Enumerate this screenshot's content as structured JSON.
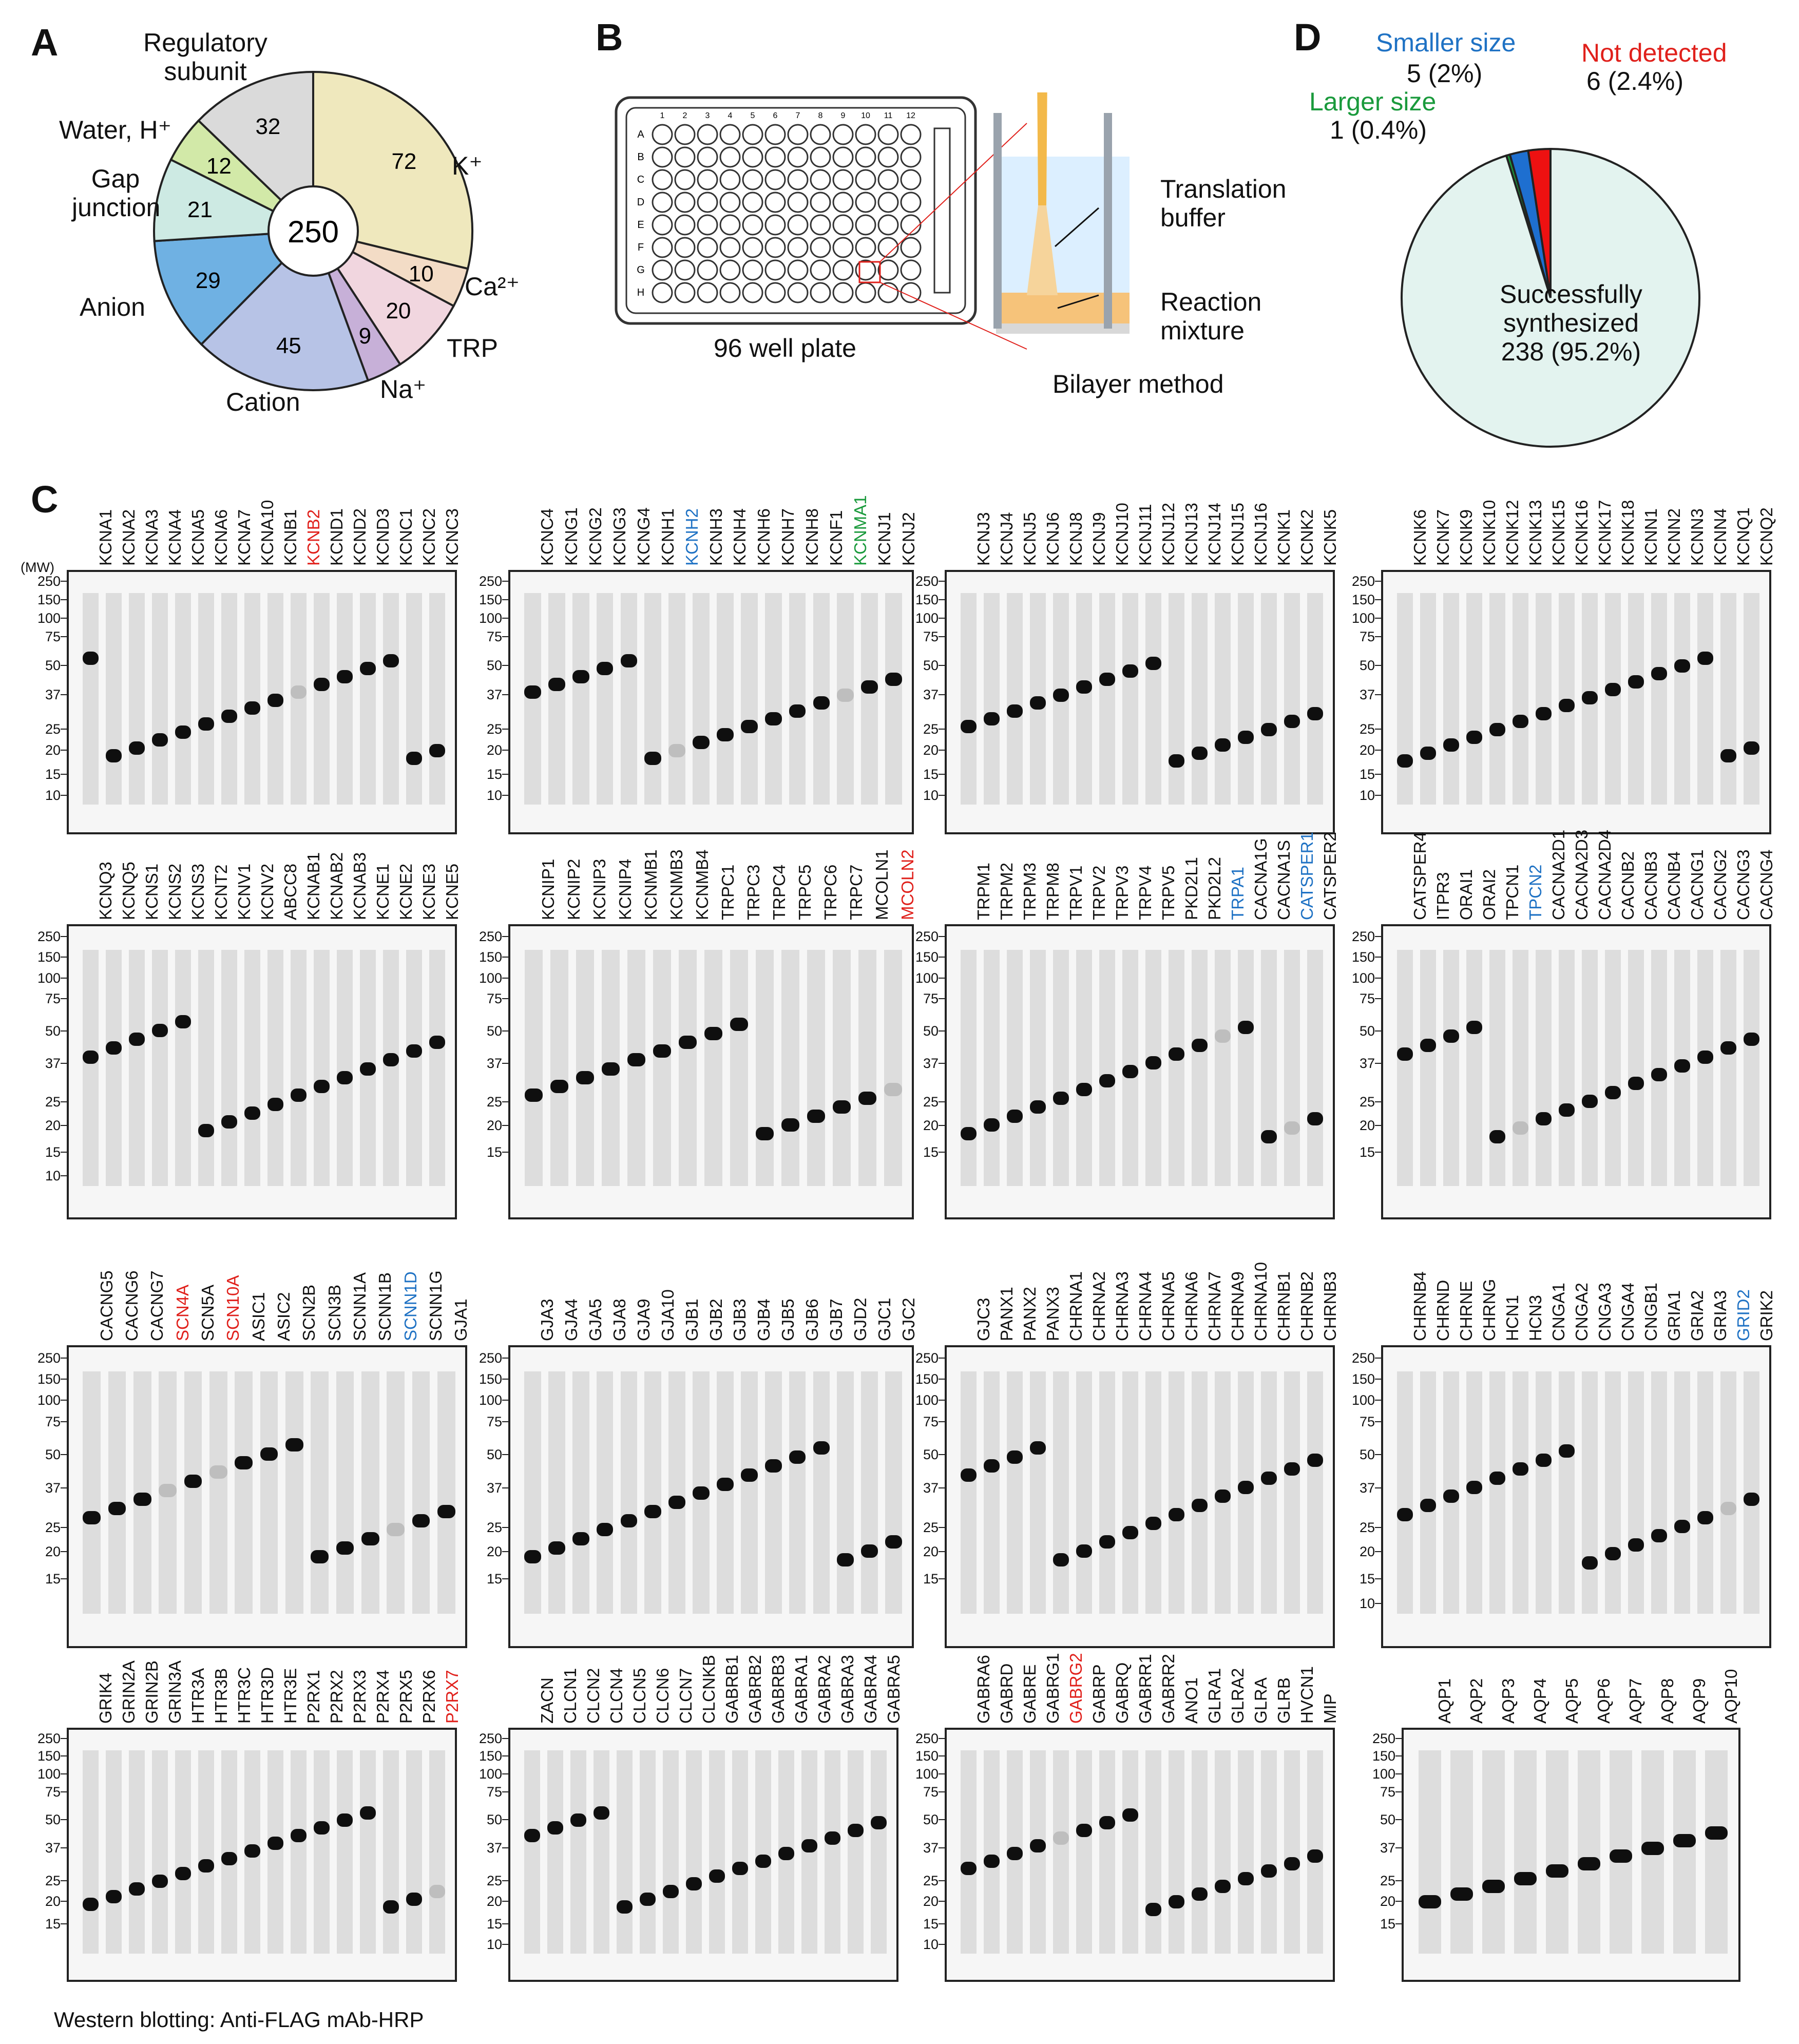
{
  "panels": {
    "A": {
      "label": "A",
      "center_value": "250",
      "slices": [
        {
          "name": "K⁺",
          "value": 72,
          "color": "#efe8bd"
        },
        {
          "name": "Ca²⁺",
          "value": 10,
          "color": "#f3dcc6"
        },
        {
          "name": "TRP",
          "value": 20,
          "color": "#f1d6df"
        },
        {
          "name": "Na⁺",
          "value": 9,
          "color": "#c7b0d8"
        },
        {
          "name": "Cation",
          "value": 45,
          "color": "#b7c3e6"
        },
        {
          "name": "Anion",
          "value": 29,
          "color": "#6fb1e3"
        },
        {
          "name": "Gap junction",
          "value": 21,
          "color": "#cdeae3"
        },
        {
          "name": "Water, H⁺",
          "value": 12,
          "color": "#d2e9a8"
        },
        {
          "name": "Regulatory subunit",
          "value": 32,
          "color": "#dadada"
        }
      ],
      "labels": {
        "regulatory": [
          "Regulatory",
          "subunit"
        ],
        "k": "K⁺",
        "water": "Water, H⁺",
        "gap": [
          "Gap",
          "junction"
        ],
        "ca": "Ca²⁺",
        "anion": "Anion",
        "trp": "TRP",
        "cation": "Cation",
        "na": "Na⁺"
      }
    },
    "B": {
      "label": "B",
      "plate_rows": [
        "A",
        "B",
        "C",
        "D",
        "E",
        "F",
        "G",
        "H"
      ],
      "plate_cols": [
        "1",
        "2",
        "3",
        "4",
        "5",
        "6",
        "7",
        "8",
        "9",
        "10",
        "11",
        "12"
      ],
      "plate_caption": "96 well plate",
      "translation_buffer": [
        "Translation",
        "buffer"
      ],
      "reaction_mixture": [
        "Reaction",
        "mixture"
      ],
      "method_caption": "Bilayer method"
    },
    "D": {
      "label": "D",
      "slices": [
        {
          "name": "Successfully synthesized",
          "count": 238,
          "percent": "95.2%",
          "color": "#e3f3ef"
        },
        {
          "name": "Larger size",
          "count": 1,
          "percent": "0.4%",
          "color": "#1a9a3c"
        },
        {
          "name": "Smaller size",
          "count": 5,
          "percent": "2%",
          "color": "#1e6fd0"
        },
        {
          "name": "Not detected",
          "count": 6,
          "percent": "2.4%",
          "color": "#ee1111"
        }
      ],
      "labels": {
        "smaller": "Smaller size",
        "smaller_val": "5 (2%)",
        "not_detected": "Not detected",
        "not_detected_val": "6 (2.4%)",
        "larger": "Larger size",
        "larger_val": "1 (0.4%)",
        "success": [
          "Successfully",
          "synthesized",
          "238 (95.2%)"
        ]
      }
    },
    "C": {
      "label": "C",
      "mw_header": "(MW)",
      "footer": "Western blotting:  Anti-FLAG mAb-HRP",
      "blots": [
        {
          "lanes": [
            "KCNA1",
            "KCNA2",
            "KCNA3",
            "KCNA4",
            "KCNA5",
            "KCNA6",
            "KCNA7",
            "KCNA10",
            "KCNB1",
            "KCNB2",
            "KCND1",
            "KCND2",
            "KCND3",
            "KCNC1",
            "KCNC2",
            "KCNC3"
          ],
          "colored": {
            "KCNB2": "#e0201b"
          },
          "mw": [
            "250",
            "150",
            "100",
            "75",
            "50",
            "37",
            "25",
            "20",
            "15",
            "10"
          ]
        },
        {
          "lanes": [
            "KCNC4",
            "KCNG1",
            "KCNG2",
            "KCNG3",
            "KCNG4",
            "KCNH1",
            "KCNH2",
            "KCNH3",
            "KCNH4",
            "KCNH6",
            "KCNH7",
            "KCNH8",
            "KCNF1",
            "KCNMA1",
            "KCNJ1",
            "KCNJ2"
          ],
          "colored": {
            "KCNH2": "#1f72c4",
            "KCNMA1": "#1a9a3c"
          },
          "mw": [
            "250",
            "150",
            "100",
            "75",
            "50",
            "37",
            "25",
            "20",
            "15",
            "10"
          ]
        },
        {
          "lanes": [
            "KCNJ3",
            "KCNJ4",
            "KCNJ5",
            "KCNJ6",
            "KCNJ8",
            "KCNJ9",
            "KCNJ10",
            "KCNJ11",
            "KCNJ12",
            "KCNJ13",
            "KCNJ14",
            "KCNJ15",
            "KCNJ16",
            "KCNK1",
            "KCNK2",
            "KCNK5"
          ],
          "colored": {},
          "mw": [
            "250",
            "150",
            "100",
            "75",
            "50",
            "37",
            "25",
            "20",
            "15",
            "10"
          ]
        },
        {
          "lanes": [
            "KCNK6",
            "KCNK7",
            "KCNK9",
            "KCNK10",
            "KCNK12",
            "KCNK13",
            "KCNK15",
            "KCNK16",
            "KCNK17",
            "KCNK18",
            "KCNN1",
            "KCNN2",
            "KCNN3",
            "KCNN4",
            "KCNQ1",
            "KCNQ2"
          ],
          "colored": {},
          "mw": [
            "250",
            "150",
            "100",
            "75",
            "50",
            "37",
            "25",
            "20",
            "15",
            "10"
          ]
        },
        {
          "lanes": [
            "KCNQ3",
            "KCNQ5",
            "KCNS1",
            "KCNS2",
            "KCNS3",
            "KCNT2",
            "KCNV1",
            "KCNV2",
            "ABCC8",
            "KCNAB1",
            "KCNAB2",
            "KCNAB3",
            "KCNE1",
            "KCNE2",
            "KCNE3",
            "KCNE5"
          ],
          "colored": {},
          "mw": [
            "250",
            "150",
            "100",
            "75",
            "50",
            "37",
            "25",
            "20",
            "15",
            "10"
          ]
        },
        {
          "lanes": [
            "KCNIP1",
            "KCNIP2",
            "KCNIP3",
            "KCNIP4",
            "KCNMB1",
            "KCNMB3",
            "KCNMB4",
            "TRPC1",
            "TRPC3",
            "TRPC4",
            "TRPC5",
            "TRPC6",
            "TRPC7",
            "MCOLN1",
            "MCOLN2"
          ],
          "colored": {
            "MCOLN2": "#e0201b"
          },
          "mw": [
            "250",
            "150",
            "100",
            "75",
            "50",
            "37",
            "25",
            "20",
            "15"
          ]
        },
        {
          "lanes": [
            "TRPM1",
            "TRPM2",
            "TRPM3",
            "TRPM8",
            "TRPV1",
            "TRPV2",
            "TRPV3",
            "TRPV4",
            "TRPV5",
            "PKD2L1",
            "PKD2L2",
            "TRPA1",
            "CACNA1G",
            "CACNA1S",
            "CATSPER1",
            "CATSPER2"
          ],
          "colored": {
            "TRPA1": "#1f72c4",
            "CATSPER1": "#1f72c4"
          },
          "mw": [
            "250",
            "150",
            "100",
            "75",
            "50",
            "37",
            "25",
            "20",
            "15"
          ]
        },
        {
          "lanes": [
            "CATSPER4",
            "ITPR3",
            "ORAI1",
            "ORAI2",
            "TPCN1",
            "TPCN2",
            "CACNA2D1",
            "CACNA2D3",
            "CACNA2D4",
            "CACNB2",
            "CACNB3",
            "CACNB4",
            "CACNG1",
            "CACNG2",
            "CACNG3",
            "CACNG4"
          ],
          "colored": {
            "TPCN2": "#1f72c4"
          },
          "mw": [
            "250",
            "150",
            "100",
            "75",
            "50",
            "37",
            "25",
            "20",
            "15"
          ]
        },
        {
          "lanes": [
            "CACNG5",
            "CACNG6",
            "CACNG7",
            "SCN4A",
            "SCN5A",
            "SCN10A",
            "ASIC1",
            "ASIC2",
            "SCN2B",
            "SCN3B",
            "SCNN1A",
            "SCNN1B",
            "SCNN1D",
            "SCNN1G",
            "GJA1"
          ],
          "colored": {
            "SCN4A": "#e0201b",
            "SCN10A": "#e0201b",
            "SCNN1D": "#1f72c4"
          },
          "mw": [
            "250",
            "150",
            "100",
            "75",
            "50",
            "37",
            "25",
            "20",
            "15"
          ]
        },
        {
          "lanes": [
            "GJA3",
            "GJA4",
            "GJA5",
            "GJA8",
            "GJA9",
            "GJA10",
            "GJB1",
            "GJB2",
            "GJB3",
            "GJB4",
            "GJB5",
            "GJB6",
            "GJB7",
            "GJD2",
            "GJC1",
            "GJC2"
          ],
          "colored": {},
          "mw": [
            "250",
            "150",
            "100",
            "75",
            "50",
            "37",
            "25",
            "20",
            "15"
          ]
        },
        {
          "lanes": [
            "GJC3",
            "PANX1",
            "PANX2",
            "PANX3",
            "CHRNA1",
            "CHRNA2",
            "CHRNA3",
            "CHRNA4",
            "CHRNA5",
            "CHRNA6",
            "CHRNA7",
            "CHRNA9",
            "CHRNA10",
            "CHRNB1",
            "CHRNB2",
            "CHRNB3"
          ],
          "colored": {},
          "mw": [
            "250",
            "150",
            "100",
            "75",
            "50",
            "37",
            "25",
            "20",
            "15"
          ]
        },
        {
          "lanes": [
            "CHRNB4",
            "CHRND",
            "CHRNE",
            "CHRNG",
            "HCN1",
            "HCN3",
            "CNGA1",
            "CNGA2",
            "CNGA3",
            "CNGA4",
            "CNGB1",
            "GRIA1",
            "GRIA2",
            "GRIA3",
            "GRID2",
            "GRIK2"
          ],
          "colored": {
            "GRID2": "#1f72c4"
          },
          "mw": [
            "250",
            "150",
            "100",
            "75",
            "50",
            "37",
            "25",
            "20",
            "15",
            "10"
          ]
        },
        {
          "lanes": [
            "GRIK4",
            "GRIN2A",
            "GRIN2B",
            "GRIN3A",
            "HTR3A",
            "HTR3B",
            "HTR3C",
            "HTR3D",
            "HTR3E",
            "P2RX1",
            "P2RX2",
            "P2RX3",
            "P2RX4",
            "P2RX5",
            "P2RX6",
            "P2RX7"
          ],
          "colored": {
            "P2RX7": "#e0201b"
          },
          "mw": [
            "250",
            "150",
            "100",
            "75",
            "50",
            "37",
            "25",
            "20",
            "15"
          ]
        },
        {
          "lanes": [
            "ZACN",
            "CLCN1",
            "CLCN2",
            "CLCN4",
            "CLCN5",
            "CLCN6",
            "CLCN7",
            "CLCNKB",
            "GABRB1",
            "GABRB2",
            "GABRB3",
            "GABRA1",
            "GABRA2",
            "GABRA3",
            "GABRA4",
            "GABRA5"
          ],
          "colored": {},
          "mw": [
            "250",
            "150",
            "100",
            "75",
            "50",
            "37",
            "25",
            "20",
            "15",
            "10"
          ]
        },
        {
          "lanes": [
            "GABRA6",
            "GABRD",
            "GABRE",
            "GABRG1",
            "GABRG2",
            "GABRP",
            "GABRQ",
            "GABRR1",
            "GABRR2",
            "ANO1",
            "GLRA1",
            "GLRA2",
            "GLRA",
            "GLRB",
            "HVCN1",
            "MIP"
          ],
          "colored": {
            "GABRG2": "#e0201b"
          },
          "mw": [
            "250",
            "150",
            "100",
            "75",
            "50",
            "37",
            "25",
            "20",
            "15",
            "10"
          ]
        },
        {
          "lanes": [
            "AQP1",
            "AQP2",
            "AQP3",
            "AQP4",
            "AQP5",
            "AQP6",
            "AQP7",
            "AQP8",
            "AQP9",
            "AQP10"
          ],
          "colored": {},
          "mw": [
            "250",
            "150",
            "100",
            "75",
            "50",
            "37",
            "25",
            "20",
            "15"
          ]
        }
      ]
    }
  }
}
